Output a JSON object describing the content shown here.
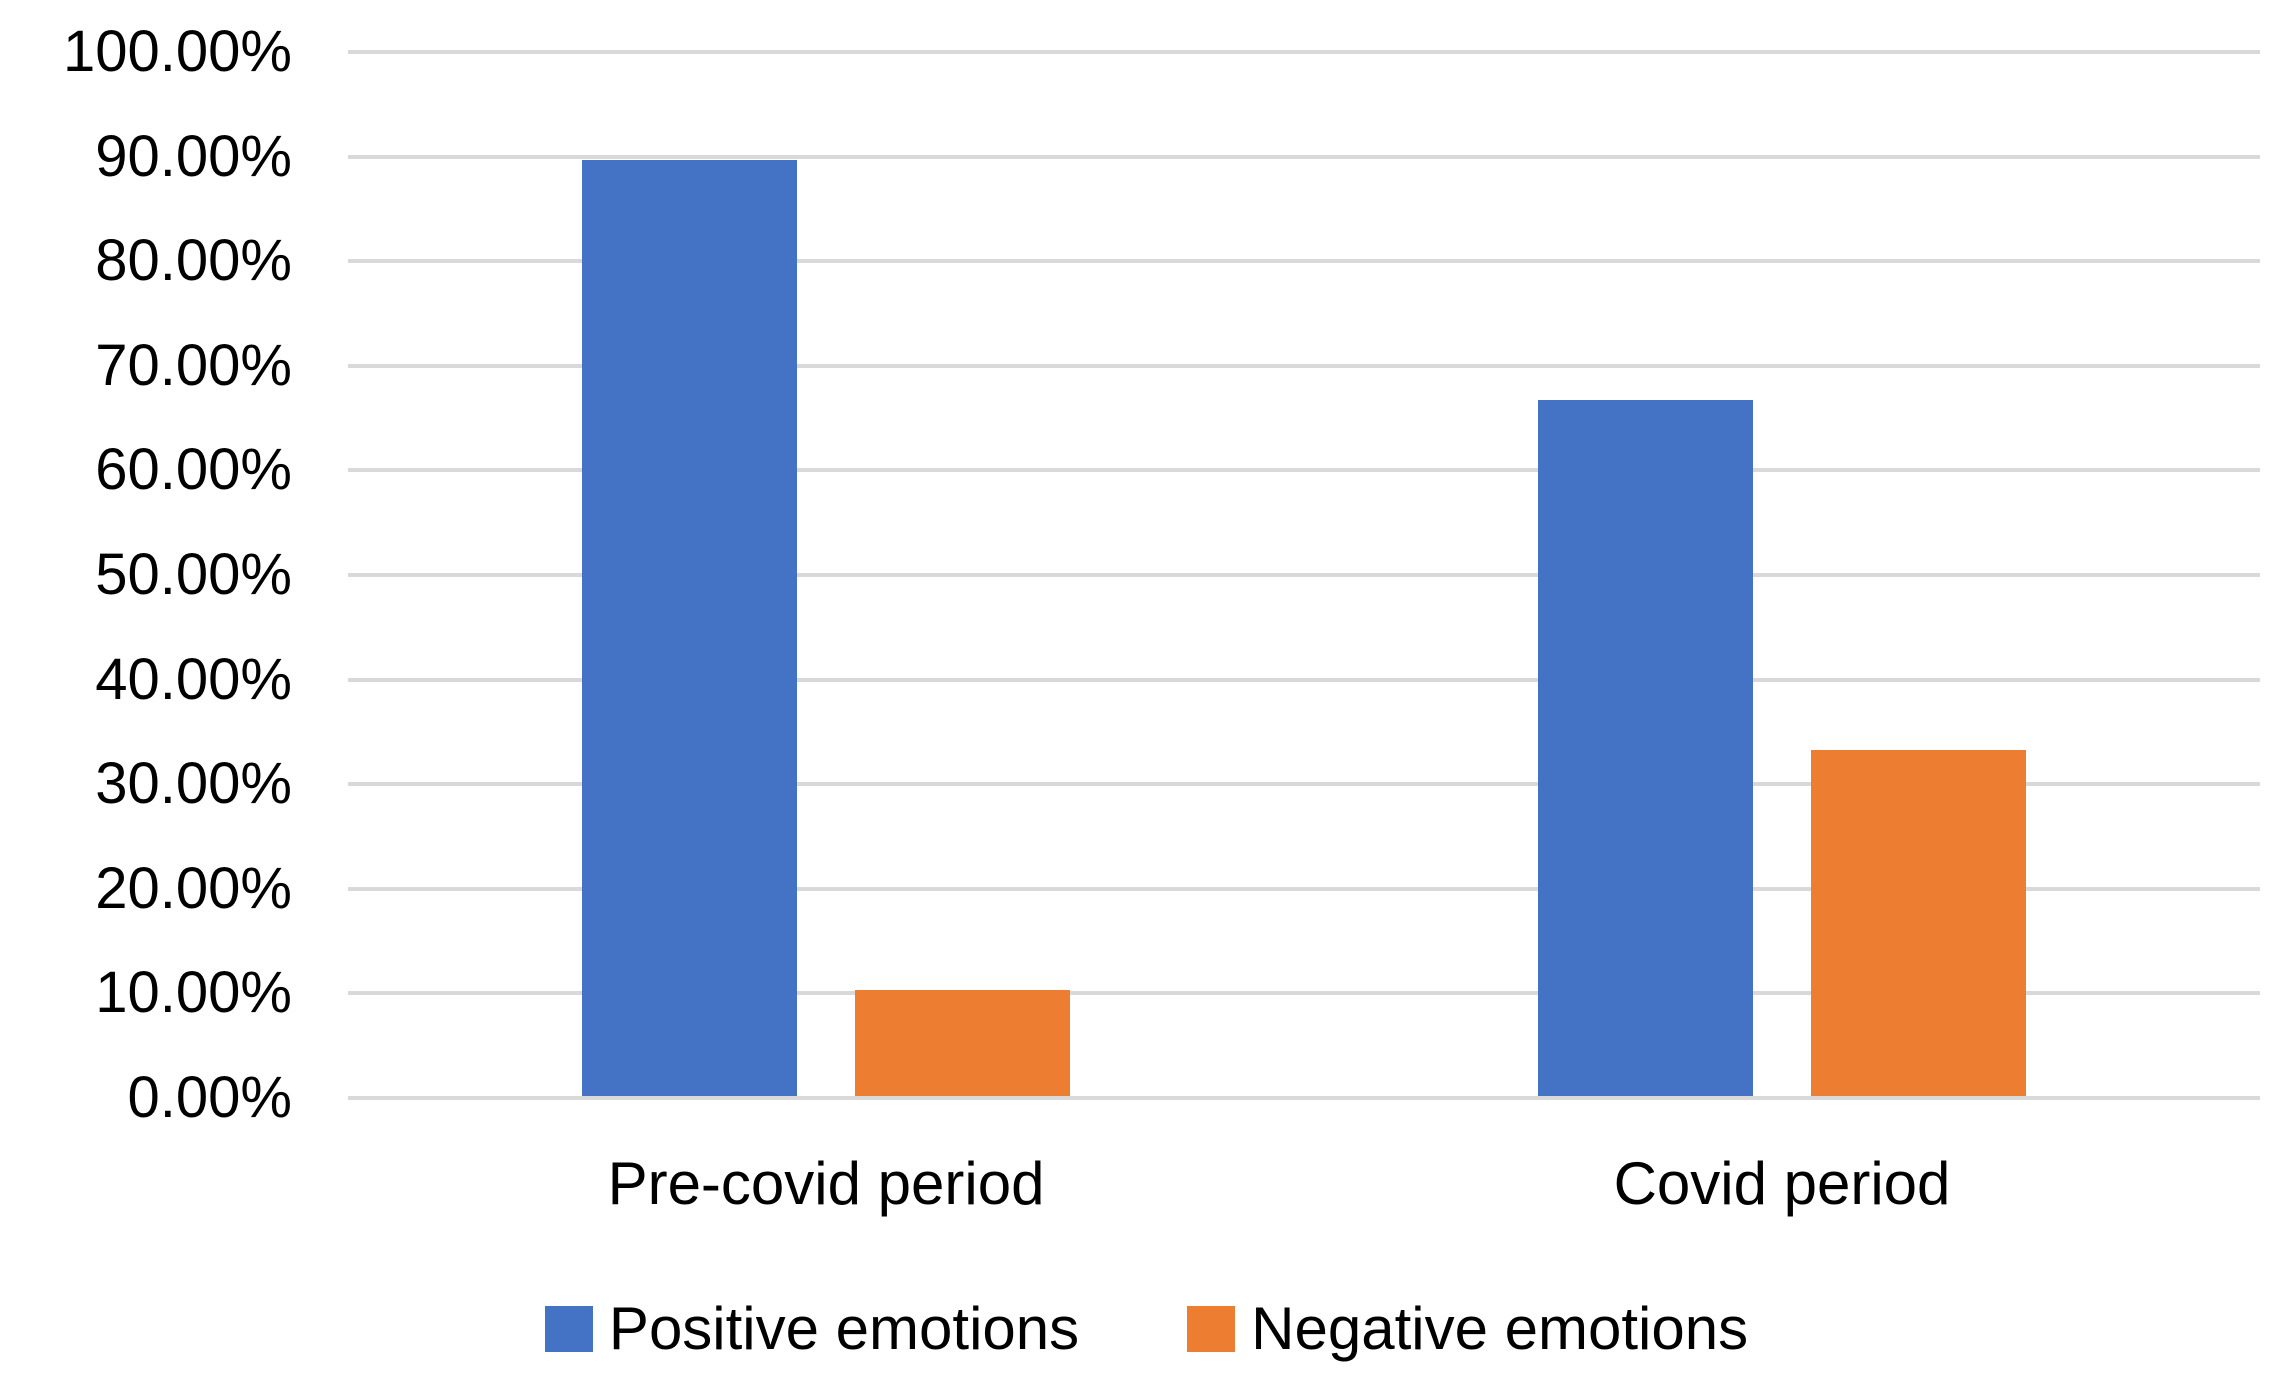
{
  "chart_data": {
    "type": "bar",
    "title": "",
    "xlabel": "",
    "ylabel": "",
    "categories": [
      "Pre-covid period",
      "Covid period"
    ],
    "series": [
      {
        "name": "Positive emotions",
        "color": "#4472C4",
        "values": [
          89.7,
          66.7
        ]
      },
      {
        "name": "Negative emotions",
        "color": "#ED7D31",
        "values": [
          10.3,
          33.3
        ]
      }
    ],
    "ylim": [
      0,
      100
    ],
    "ytick_step": 10,
    "ytick_labels": [
      "0.00%",
      "10.00%",
      "20.00%",
      "30.00%",
      "40.00%",
      "50.00%",
      "60.00%",
      "70.00%",
      "80.00%",
      "90.00%",
      "100.00%"
    ],
    "grid": "horizontal-only",
    "gridline_color": "#D9D9D9",
    "plot_background": "#FFFFFF",
    "legend_position": "bottom"
  }
}
